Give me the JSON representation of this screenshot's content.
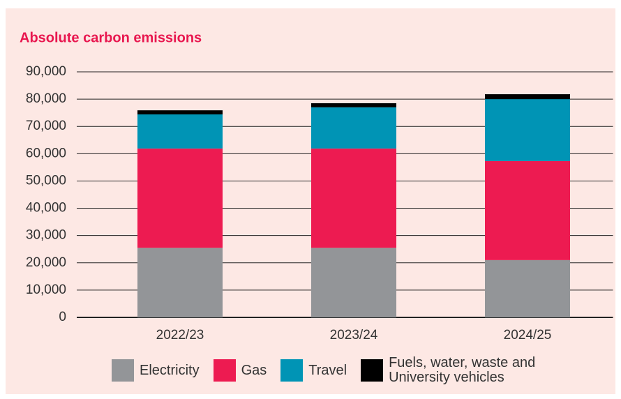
{
  "chart_data": {
    "type": "stacked_bar",
    "title": "Absolute carbon emissions",
    "categories": [
      "2022/23",
      "2023/24",
      "2024/25"
    ],
    "series": [
      {
        "name": "Electricity",
        "color": "#939598",
        "values": [
          25500,
          25500,
          21000
        ]
      },
      {
        "name": "Gas",
        "color": "#ed1b51",
        "values": [
          36400,
          36400,
          36300
        ]
      },
      {
        "name": "Travel",
        "color": "#0094b5",
        "values": [
          12500,
          15100,
          22700
        ]
      },
      {
        "name": "Fuels, water, waste and University vehicles",
        "color": "#000000",
        "values": [
          1500,
          1500,
          1800
        ]
      }
    ],
    "ylim": [
      0,
      90000
    ],
    "yticks": [
      0,
      {
        "value": 10000,
        "label": "10,000"
      },
      {
        "value": 20000,
        "label": "20,000"
      },
      {
        "value": 30000,
        "label": "30,000"
      },
      {
        "value": 40000,
        "label": "40,000"
      },
      {
        "value": 50000,
        "label": "50,000"
      },
      {
        "value": 60000,
        "label": "60,000"
      },
      {
        "value": 70000,
        "label": "70,000"
      },
      {
        "value": 80000,
        "label": "80,000"
      },
      {
        "value": 90000,
        "label": "90,000"
      }
    ],
    "grid": true,
    "legend": "bottom"
  }
}
